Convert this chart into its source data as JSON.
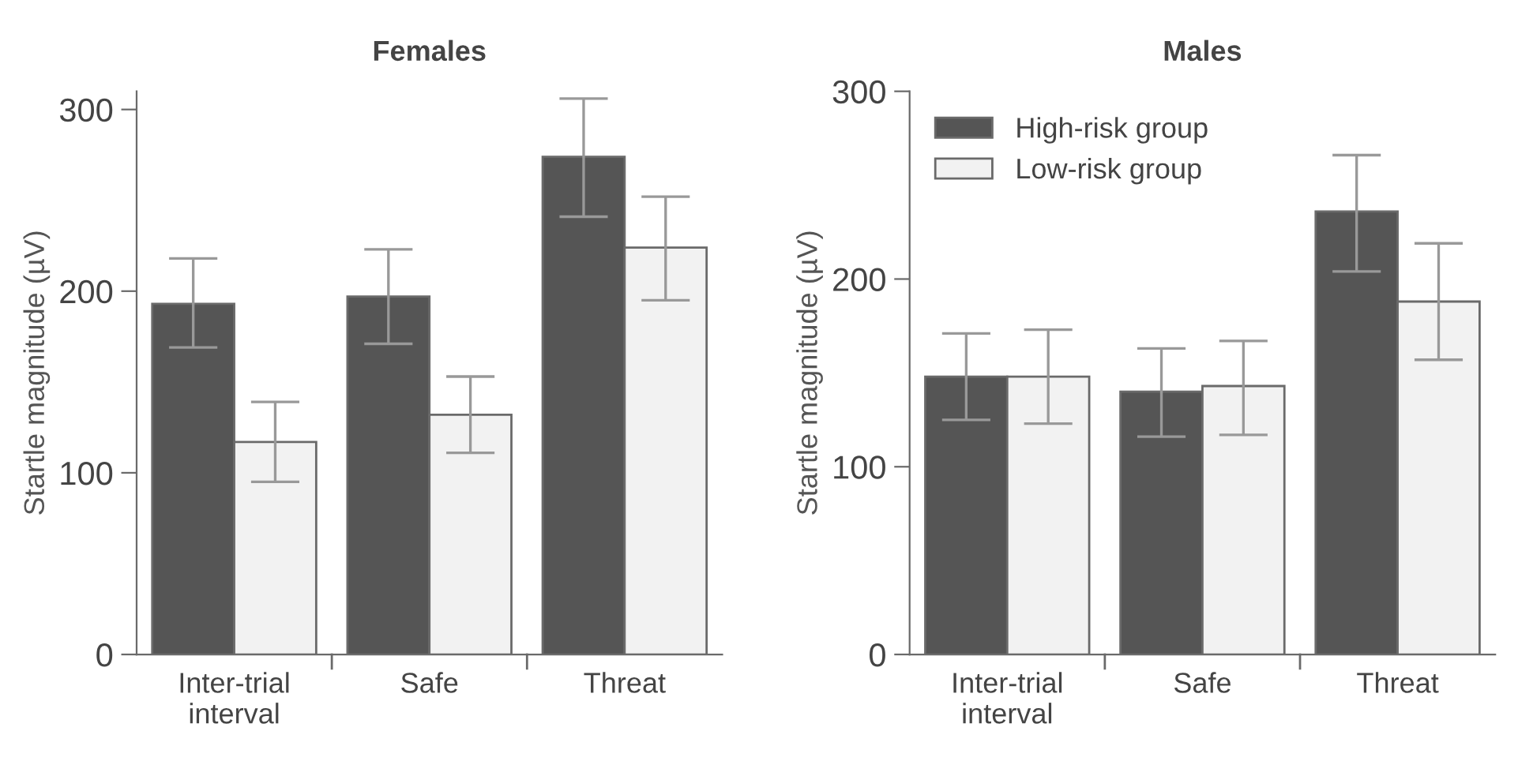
{
  "chart_data": [
    {
      "type": "bar",
      "title": "Females",
      "ylabel": "Startle magnitude (µV)",
      "categories": [
        "Inter-trial\ninterval",
        "Safe",
        "Threat"
      ],
      "ylim": [
        0,
        310
      ],
      "yticks": [
        0,
        100,
        200,
        300
      ],
      "series": [
        {
          "color": "#555555",
          "values": [
            193,
            197,
            274
          ],
          "errors": [
            [
              169,
              218
            ],
            [
              171,
              223
            ],
            [
              241,
              306
            ]
          ]
        },
        {
          "color": "#f2f2f2",
          "values": [
            117,
            132,
            224
          ],
          "errors": [
            [
              95,
              139
            ],
            [
              111,
              153
            ],
            [
              195,
              252
            ]
          ]
        }
      ]
    },
    {
      "type": "bar",
      "title": "Males",
      "ylabel": "Startle magnitude (µV)",
      "categories": [
        "Inter-trial\ninterval",
        "Safe",
        "Threat"
      ],
      "ylim": [
        0,
        300
      ],
      "yticks": [
        0,
        100,
        200,
        300
      ],
      "legend": "top left",
      "series": [
        {
          "name": "High-risk group",
          "color": "#555555",
          "values": [
            148,
            140,
            236
          ],
          "errors": [
            [
              125,
              171
            ],
            [
              116,
              163
            ],
            [
              204,
              266
            ]
          ]
        },
        {
          "name": "Low-risk group",
          "color": "#f2f2f2",
          "values": [
            148,
            143,
            188
          ],
          "errors": [
            [
              123,
              173
            ],
            [
              117,
              167
            ],
            [
              157,
              219
            ]
          ]
        }
      ]
    }
  ]
}
